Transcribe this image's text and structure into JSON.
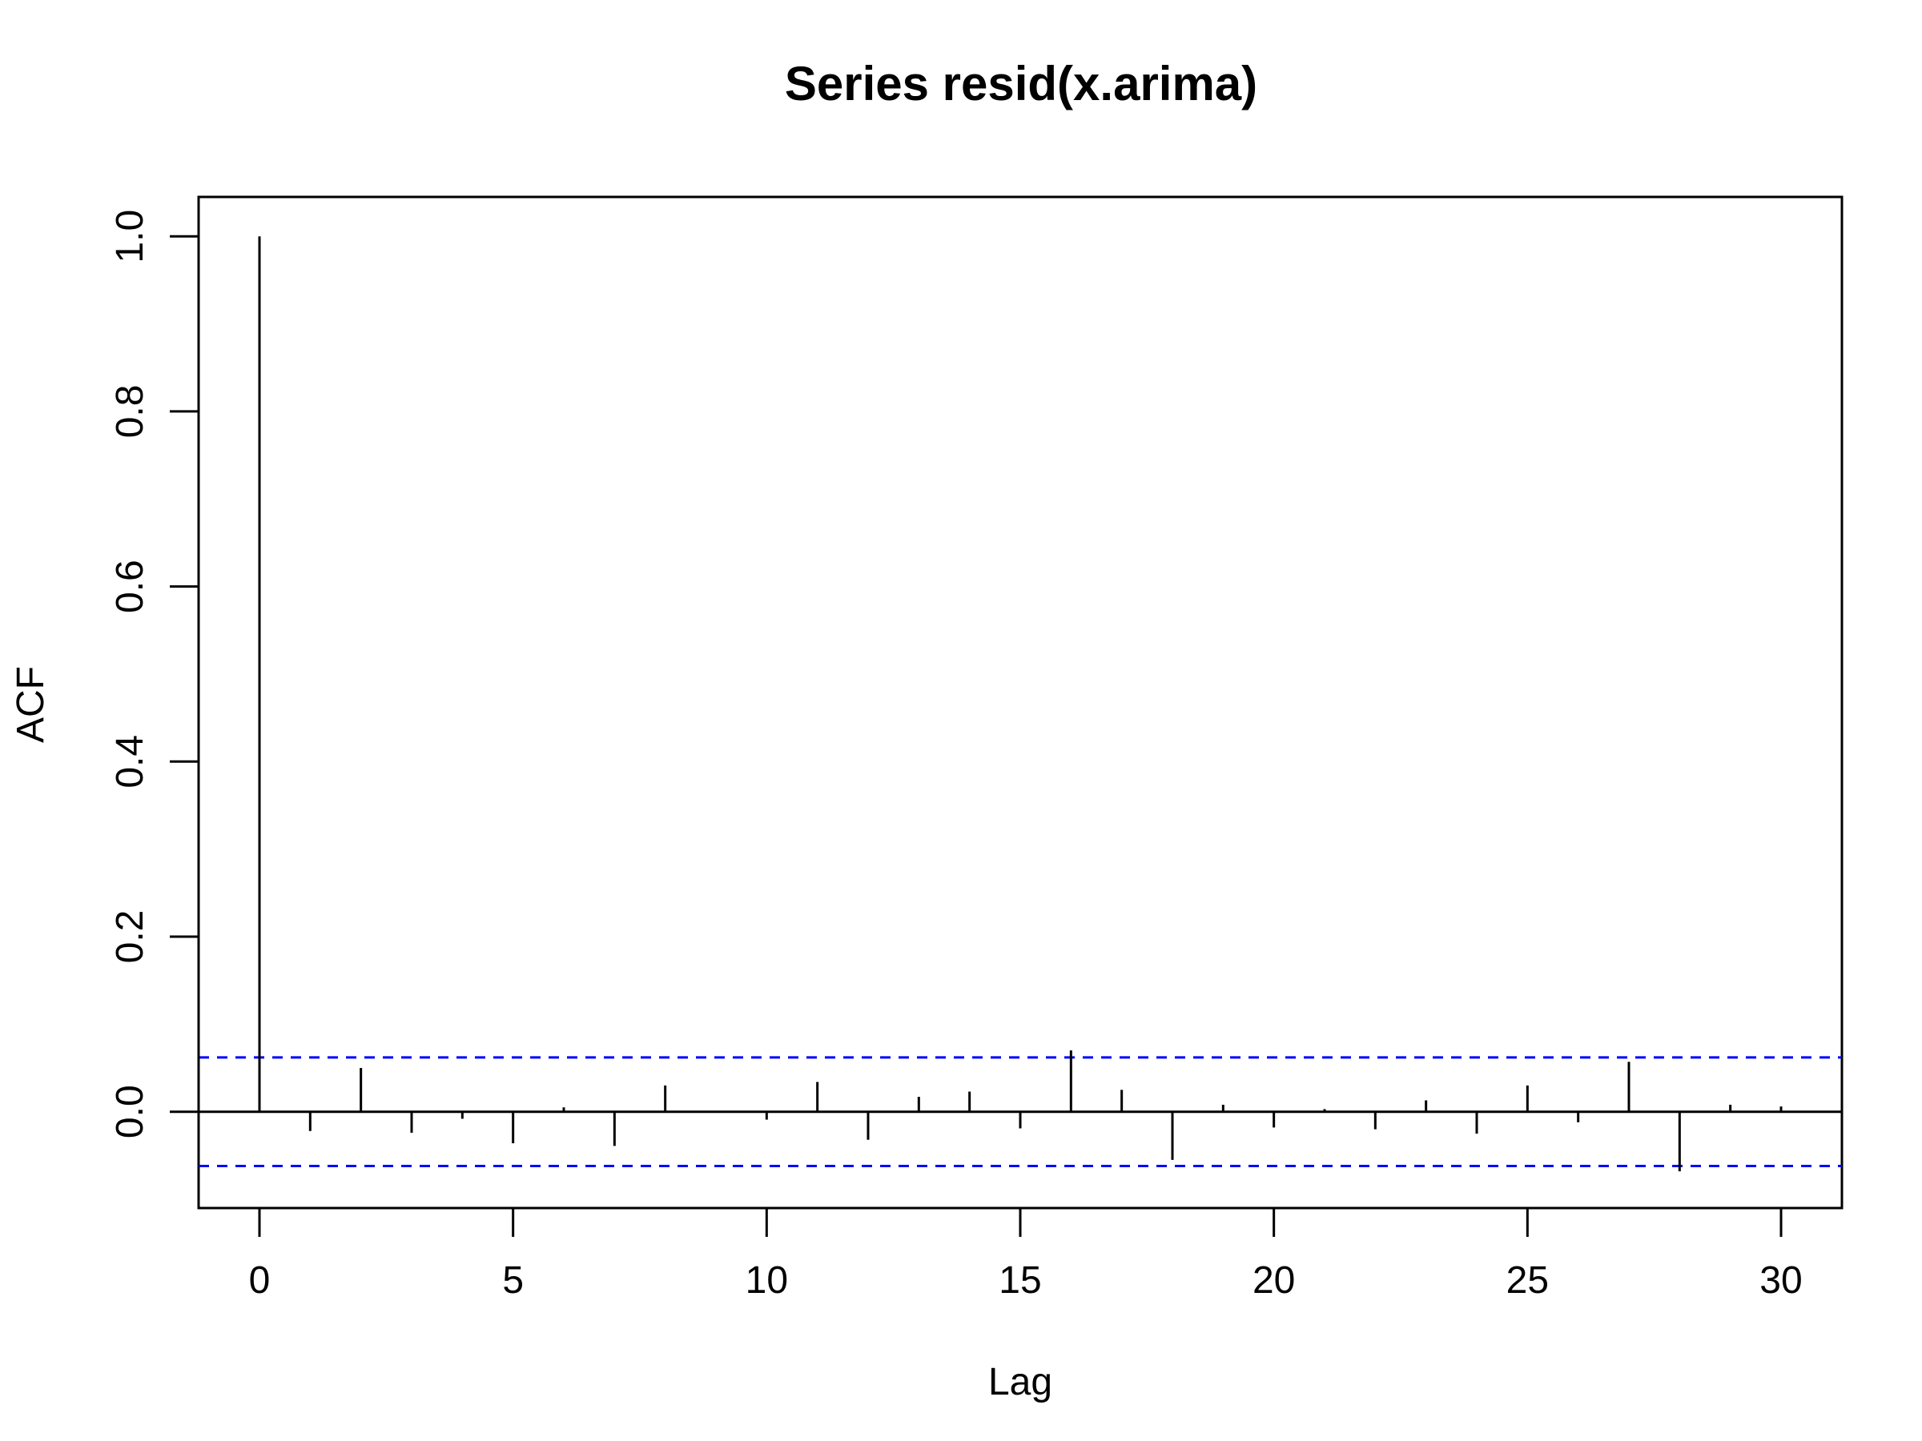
{
  "chart_data": {
    "type": "bar",
    "title": "Series  resid(x.arima)",
    "xlabel": "Lag",
    "ylabel": "ACF",
    "xlim": [
      -1.2,
      31.2
    ],
    "ylim": [
      -0.11,
      1.045
    ],
    "x_ticks": [
      0,
      5,
      10,
      15,
      20,
      25,
      30
    ],
    "y_ticks": [
      0.0,
      0.2,
      0.4,
      0.6,
      0.8,
      1.0
    ],
    "x_tick_labels": [
      "0",
      "5",
      "10",
      "15",
      "20",
      "25",
      "30"
    ],
    "y_tick_labels": [
      "0.0",
      "0.2",
      "0.4",
      "0.6",
      "0.8",
      "1.0"
    ],
    "lags": [
      0,
      1,
      2,
      3,
      4,
      5,
      6,
      7,
      8,
      9,
      10,
      11,
      12,
      13,
      14,
      15,
      16,
      17,
      18,
      19,
      20,
      21,
      22,
      23,
      24,
      25,
      26,
      27,
      28,
      29,
      30
    ],
    "values": [
      1.0,
      -0.022,
      0.05,
      -0.024,
      -0.008,
      -0.036,
      0.005,
      -0.039,
      0.03,
      0.0,
      -0.009,
      0.034,
      -0.032,
      0.017,
      0.023,
      -0.019,
      0.07,
      0.025,
      -0.055,
      0.008,
      -0.018,
      0.003,
      -0.02,
      0.013,
      -0.025,
      0.03,
      -0.012,
      0.057,
      -0.068,
      0.008,
      0.006
    ],
    "confidence_bound": 0.062,
    "colors": {
      "bars": "#000000",
      "confidence_lines": "#0000ff",
      "zero_line": "#000000",
      "frame": "#000000"
    },
    "grid": false,
    "legend": "none"
  }
}
